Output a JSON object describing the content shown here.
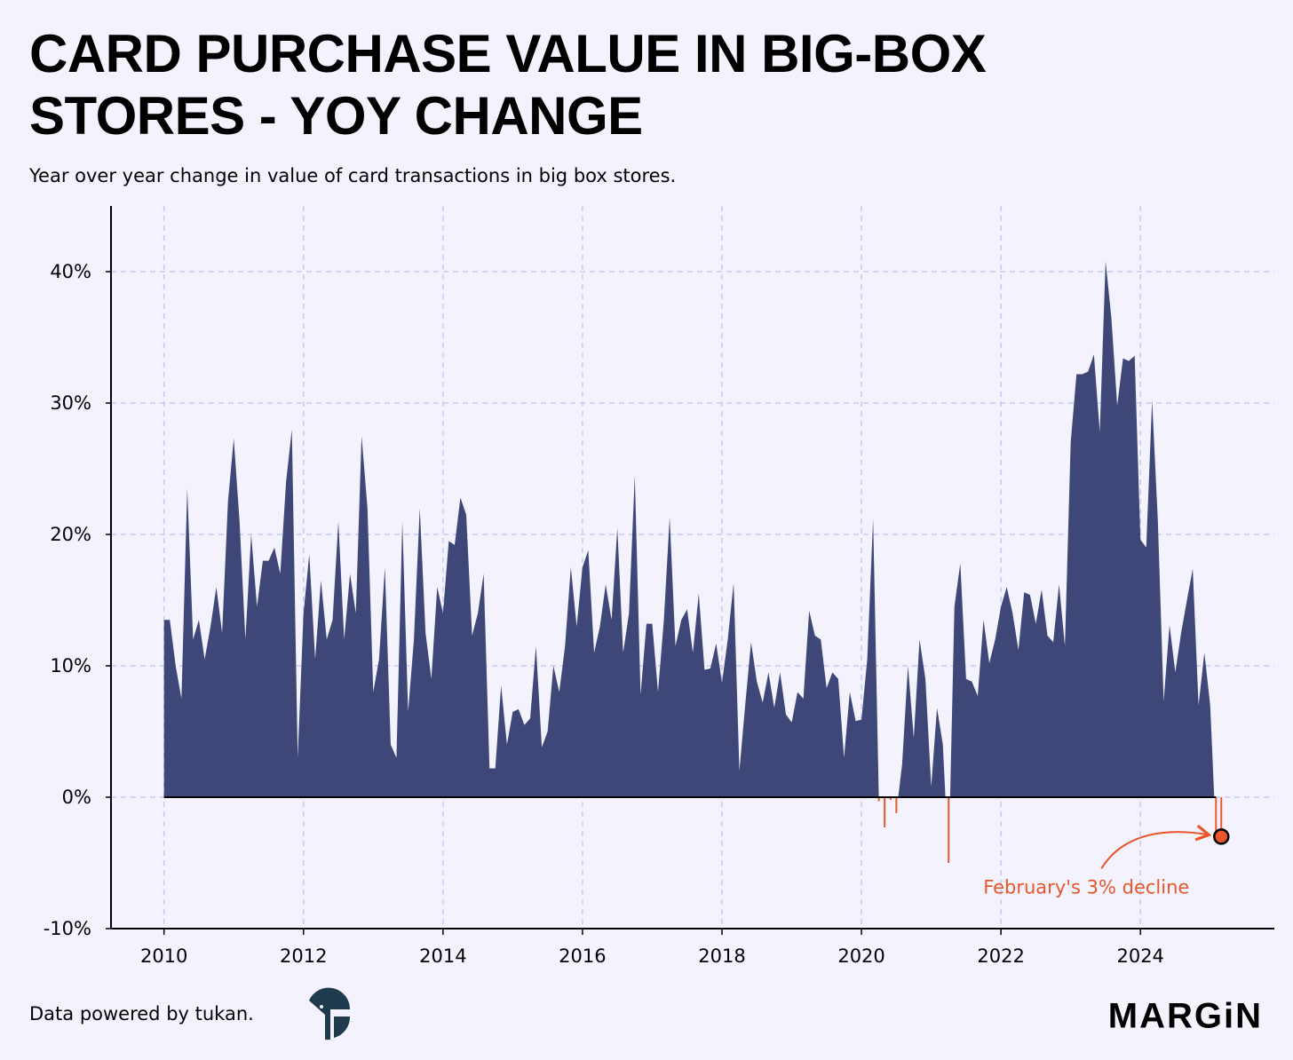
{
  "chart_data": {
    "type": "area",
    "title": "CARD PURCHASE VALUE IN BIG-BOX STORES - YOY CHANGE",
    "subtitle": "Year over year change in value of card transactions in big box stores.",
    "annotation": "February's 3% decline",
    "source": "Data powered by tukan.",
    "brand": "MARGiN",
    "color": "#3e4777",
    "negative_color": "#e8562a",
    "grid": true,
    "xlim": [
      2009.24,
      2025.92
    ],
    "ylim": [
      -10,
      45
    ],
    "xticks": [
      2010,
      2012,
      2014,
      2016,
      2018,
      2020,
      2022,
      2024
    ],
    "yticks": [
      {
        "value": -10,
        "label": "-10%"
      },
      {
        "value": 0,
        "label": "0%"
      },
      {
        "value": 10,
        "label": "10%"
      },
      {
        "value": 20,
        "label": "20%"
      },
      {
        "value": 30,
        "label": "30%"
      },
      {
        "value": 40,
        "label": "40%"
      }
    ],
    "x": [
      2010,
      2010.083,
      2010.167,
      2010.25,
      2010.333,
      2010.417,
      2010.5,
      2010.583,
      2010.667,
      2010.75,
      2010.833,
      2010.917,
      2011,
      2011.083,
      2011.167,
      2011.25,
      2011.333,
      2011.417,
      2011.5,
      2011.583,
      2011.667,
      2011.75,
      2011.833,
      2011.917,
      2012,
      2012.083,
      2012.167,
      2012.25,
      2012.333,
      2012.417,
      2012.5,
      2012.583,
      2012.667,
      2012.75,
      2012.833,
      2012.917,
      2013,
      2013.083,
      2013.167,
      2013.25,
      2013.333,
      2013.417,
      2013.5,
      2013.583,
      2013.667,
      2013.75,
      2013.833,
      2013.917,
      2014,
      2014.083,
      2014.167,
      2014.25,
      2014.333,
      2014.417,
      2014.5,
      2014.583,
      2014.667,
      2014.75,
      2014.833,
      2014.917,
      2015,
      2015.083,
      2015.167,
      2015.25,
      2015.333,
      2015.417,
      2015.5,
      2015.583,
      2015.667,
      2015.75,
      2015.833,
      2015.917,
      2016,
      2016.083,
      2016.167,
      2016.25,
      2016.333,
      2016.417,
      2016.5,
      2016.583,
      2016.667,
      2016.75,
      2016.833,
      2016.917,
      2017,
      2017.083,
      2017.167,
      2017.25,
      2017.333,
      2017.417,
      2017.5,
      2017.583,
      2017.667,
      2017.75,
      2017.833,
      2017.917,
      2018,
      2018.083,
      2018.167,
      2018.25,
      2018.333,
      2018.417,
      2018.5,
      2018.583,
      2018.667,
      2018.75,
      2018.833,
      2018.917,
      2019,
      2019.083,
      2019.167,
      2019.25,
      2019.333,
      2019.417,
      2019.5,
      2019.583,
      2019.667,
      2019.75,
      2019.833,
      2019.917,
      2020,
      2020.083,
      2020.167,
      2020.25,
      2020.333,
      2020.417,
      2020.5,
      2020.583,
      2020.667,
      2020.75,
      2020.833,
      2020.917,
      2021,
      2021.083,
      2021.167,
      2021.25,
      2021.333,
      2021.417,
      2021.5,
      2021.583,
      2021.667,
      2021.75,
      2021.833,
      2021.917,
      2022,
      2022.083,
      2022.167,
      2022.25,
      2022.333,
      2022.417,
      2022.5,
      2022.583,
      2022.667,
      2022.75,
      2022.833,
      2022.917,
      2023,
      2023.083,
      2023.167,
      2023.25,
      2023.333,
      2023.417,
      2023.5,
      2023.583,
      2023.667,
      2023.75,
      2023.833,
      2023.917,
      2024,
      2024.083,
      2024.167,
      2024.25,
      2024.333,
      2024.417,
      2024.5,
      2024.583,
      2024.667,
      2024.75,
      2024.833,
      2024.917,
      2025,
      2025.083
    ],
    "values": [
      13.5,
      13.5,
      10,
      7.5,
      23.5,
      12,
      13.5,
      10.5,
      13,
      16,
      12.5,
      22.5,
      27.3,
      21,
      12,
      20,
      14.5,
      18,
      18,
      19,
      17,
      24,
      28,
      3,
      14,
      18.5,
      10.5,
      16.5,
      12,
      13.5,
      21,
      12,
      17,
      14,
      27.5,
      22,
      8,
      10.5,
      17.5,
      4,
      3,
      21,
      6.5,
      12,
      22,
      12.5,
      9,
      16,
      14,
      19.5,
      19.2,
      22.8,
      21.5,
      12.3,
      14,
      17,
      2.2,
      2.2,
      8.5,
      4,
      6.5,
      6.7,
      5.5,
      6,
      11.5,
      3.8,
      5,
      10,
      8,
      11.5,
      17.5,
      13,
      17.5,
      18.8,
      11,
      13,
      16.2,
      13.5,
      20.5,
      11,
      14,
      24.5,
      7.8,
      13.2,
      13.2,
      8,
      13.5,
      21.3,
      11.5,
      13.5,
      14.3,
      11,
      15.5,
      9.7,
      9.8,
      11.7,
      8.7,
      12,
      16.3,
      2,
      7,
      11.8,
      8.8,
      7.2,
      9.5,
      6.8,
      9.5,
      6.3,
      5.7,
      8,
      7.5,
      14.2,
      12.3,
      12,
      8.3,
      9.5,
      9,
      3,
      8,
      5.8,
      5.9,
      10.5,
      21.2,
      -0.3,
      -2.3,
      -0.2,
      -1.2,
      2.5,
      10,
      4.5,
      12,
      9,
      0.8,
      6.8,
      4,
      -5,
      14.5,
      17.8,
      9,
      8.8,
      7.7,
      13.5,
      10.2,
      12,
      14.5,
      16,
      14,
      11.2,
      15.6,
      15.4,
      13.2,
      15.8,
      12.3,
      11.8,
      16.2,
      11.5,
      27,
      32.2,
      32.2,
      32.4,
      33.7,
      27.8,
      40.8,
      36.5,
      29.8,
      33.4,
      33.2,
      33.6,
      19.6,
      19,
      30.2,
      21,
      7.3,
      13.1,
      9.5,
      12.5,
      15,
      17.4,
      7,
      11,
      7,
      -3
    ]
  }
}
